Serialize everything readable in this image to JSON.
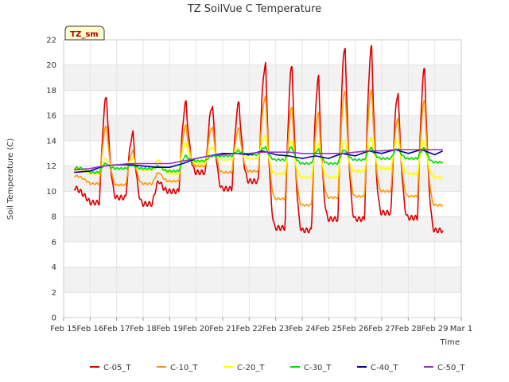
{
  "chart_data": {
    "type": "line",
    "title": "TZ SoilVue C Temperature",
    "xlabel": "Time",
    "ylabel": "Soil Temperature (C)",
    "badge": "TZ_sm",
    "x_tick_labels": [
      "Feb 15",
      "Feb 16",
      "Feb 17",
      "Feb 18",
      "Feb 19",
      "Feb 20",
      "Feb 21",
      "Feb 22",
      "Feb 23",
      "Feb 24",
      "Feb 25",
      "Feb 26",
      "Feb 27",
      "Feb 28",
      "Feb 29",
      "Mar 1"
    ],
    "y_ticks": [
      0,
      2,
      4,
      6,
      8,
      10,
      12,
      14,
      16,
      18,
      20,
      22
    ],
    "xlim": [
      0,
      15
    ],
    "ylim": [
      0,
      22
    ],
    "grid": true,
    "legend_position": "bottom",
    "series": [
      {
        "name": "C-05_T",
        "color": "#dd0000",
        "peaks": [
          17.5,
          14.6,
          10.8,
          17.0,
          16.8,
          17.0,
          20.1,
          20.0,
          19.0,
          21.5,
          21.4,
          17.8,
          19.7,
          21.4
        ],
        "troughs": [
          10.5,
          9.1,
          9.5,
          9.0,
          10.0,
          11.5,
          10.2,
          10.8,
          7.1,
          6.9,
          7.8,
          7.8,
          8.3,
          7.9,
          6.9,
          10.0
        ]
      },
      {
        "name": "C-10_T",
        "color": "#ff9900",
        "peaks": [
          15.2,
          13.2,
          11.5,
          15.2,
          15.1,
          15.0,
          17.5,
          16.7,
          16.2,
          18.0,
          18.0,
          15.8,
          17.2,
          18.0
        ],
        "troughs": [
          11.0,
          10.6,
          10.5,
          10.6,
          10.8,
          12.0,
          11.5,
          11.6,
          9.4,
          8.9,
          9.5,
          9.6,
          10.0,
          9.6,
          8.9,
          11.6
        ]
      },
      {
        "name": "C-20_T",
        "color": "#ffff00",
        "peaks": [
          12.6,
          12.6,
          12.5,
          13.8,
          13.5,
          13.4,
          14.4,
          14.0,
          13.8,
          14.1,
          14.2,
          14.1,
          14.0,
          14.0
        ],
        "troughs": [
          11.2,
          11.4,
          11.8,
          11.7,
          11.4,
          12.2,
          12.5,
          12.6,
          11.4,
          11.1,
          11.1,
          11.6,
          11.8,
          11.4,
          11.1,
          13.5
        ]
      },
      {
        "name": "C-30_T",
        "color": "#00dd00",
        "peaks": [
          12.2,
          12.1,
          12.0,
          12.8,
          12.8,
          13.2,
          13.5,
          13.5,
          13.3,
          13.3,
          13.4,
          13.4,
          13.4,
          13.4
        ],
        "troughs": [
          11.4,
          11.5,
          11.8,
          11.8,
          11.6,
          12.4,
          12.8,
          12.9,
          12.5,
          12.2,
          12.2,
          12.5,
          12.6,
          12.6,
          12.3,
          13.4
        ]
      },
      {
        "name": "C-40_T",
        "color": "#000099",
        "points": [
          [
            0.4,
            11.5
          ],
          [
            1,
            11.6
          ],
          [
            1.5,
            12.0
          ],
          [
            2,
            12.1
          ],
          [
            2.5,
            12.1
          ],
          [
            3,
            12.0
          ],
          [
            3.5,
            11.9
          ],
          [
            4,
            11.9
          ],
          [
            4.5,
            12.2
          ],
          [
            5,
            12.6
          ],
          [
            5.5,
            12.8
          ],
          [
            6,
            13.0
          ],
          [
            6.5,
            13.0
          ],
          [
            7,
            12.9
          ],
          [
            7.5,
            13.2
          ],
          [
            8,
            12.9
          ],
          [
            8.5,
            12.8
          ],
          [
            9,
            12.6
          ],
          [
            9.5,
            12.8
          ],
          [
            10,
            12.6
          ],
          [
            10.5,
            13.0
          ],
          [
            11,
            12.8
          ],
          [
            11.5,
            13.2
          ],
          [
            12,
            13.0
          ],
          [
            12.5,
            13.3
          ],
          [
            13,
            13.0
          ],
          [
            13.5,
            13.3
          ],
          [
            14,
            12.9
          ],
          [
            14.3,
            13.2
          ]
        ]
      },
      {
        "name": "C-50_T",
        "color": "#9933cc",
        "points": [
          [
            0.4,
            11.7
          ],
          [
            1,
            11.8
          ],
          [
            1.5,
            12.0
          ],
          [
            2,
            12.1
          ],
          [
            2.5,
            12.2
          ],
          [
            3,
            12.2
          ],
          [
            3.5,
            12.2
          ],
          [
            4,
            12.2
          ],
          [
            4.5,
            12.4
          ],
          [
            5,
            12.6
          ],
          [
            5.5,
            12.8
          ],
          [
            6,
            12.9
          ],
          [
            6.5,
            13.0
          ],
          [
            7,
            13.0
          ],
          [
            7.5,
            13.1
          ],
          [
            8,
            13.1
          ],
          [
            8.5,
            13.1
          ],
          [
            9,
            13.0
          ],
          [
            9.5,
            13.0
          ],
          [
            10,
            13.0
          ],
          [
            10.5,
            13.0
          ],
          [
            11,
            13.1
          ],
          [
            11.5,
            13.2
          ],
          [
            12,
            13.2
          ],
          [
            12.5,
            13.3
          ],
          [
            13,
            13.3
          ],
          [
            13.5,
            13.3
          ],
          [
            14,
            13.3
          ],
          [
            14.3,
            13.3
          ]
        ]
      }
    ]
  }
}
